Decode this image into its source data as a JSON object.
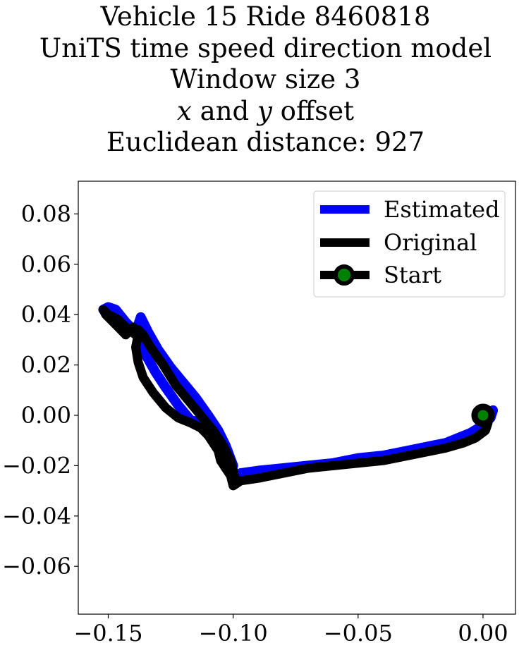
{
  "chart_data": {
    "type": "line",
    "title_lines": [
      "Vehicle 15 Ride 8460818",
      "UniTS time speed direction model",
      "Window size 3",
      "",
      "Euclidean distance: 927"
    ],
    "title_line4": {
      "x_var": "x",
      "middle": " and ",
      "y_var": "y",
      "rest": " offset"
    },
    "xlabel": "",
    "ylabel": "",
    "xlim": [
      -0.162,
      0.013
    ],
    "ylim": [
      -0.079,
      0.093
    ],
    "x_ticks": [
      -0.15,
      -0.1,
      -0.05,
      0.0
    ],
    "x_tick_labels": [
      "−0.15",
      "−0.10",
      "−0.05",
      "0.00"
    ],
    "y_ticks": [
      0.08,
      0.06,
      0.04,
      0.02,
      0.0,
      -0.02,
      -0.04,
      -0.06
    ],
    "y_tick_labels": [
      "0.08",
      "0.06",
      "0.04",
      "0.02",
      "0.00",
      "−0.02",
      "−0.04",
      "−0.06"
    ],
    "grid": false,
    "legend_position": "upper right",
    "series": [
      {
        "name": "Estimated",
        "color": "#0000ff",
        "x": [
          0.004,
          0.003,
          0.0,
          -0.005,
          -0.01,
          -0.015,
          -0.02,
          -0.03,
          -0.04,
          -0.05,
          -0.06,
          -0.07,
          -0.08,
          -0.09,
          -0.097,
          -0.099,
          -0.1,
          -0.102,
          -0.105,
          -0.108,
          -0.112,
          -0.117,
          -0.122,
          -0.127,
          -0.131,
          -0.135,
          -0.137,
          -0.138,
          -0.14,
          -0.142,
          -0.145,
          -0.148,
          -0.15,
          -0.152,
          -0.15,
          -0.147,
          -0.143,
          -0.14,
          -0.138,
          -0.137,
          -0.136,
          -0.134,
          -0.13,
          -0.125,
          -0.12,
          -0.115,
          -0.11,
          -0.106,
          -0.103,
          -0.1
        ],
        "y": [
          0.002,
          -0.001,
          -0.004,
          -0.007,
          -0.009,
          -0.011,
          -0.012,
          -0.014,
          -0.016,
          -0.017,
          -0.019,
          -0.02,
          -0.021,
          -0.022,
          -0.023,
          -0.024,
          -0.022,
          -0.017,
          -0.012,
          -0.008,
          -0.003,
          -0.002,
          0.004,
          0.011,
          0.017,
          0.024,
          0.03,
          0.035,
          0.034,
          0.036,
          0.039,
          0.042,
          0.043,
          0.042,
          0.043,
          0.042,
          0.037,
          0.033,
          0.036,
          0.039,
          0.037,
          0.033,
          0.026,
          0.019,
          0.013,
          0.007,
          0.0,
          -0.006,
          -0.012,
          -0.02
        ]
      },
      {
        "name": "Original",
        "color": "#000000",
        "x": [
          0.0,
          0.002,
          0.001,
          -0.003,
          -0.008,
          -0.015,
          -0.02,
          -0.03,
          -0.04,
          -0.05,
          -0.06,
          -0.07,
          -0.08,
          -0.09,
          -0.097,
          -0.1,
          -0.101,
          -0.103,
          -0.105,
          -0.106,
          -0.108,
          -0.11,
          -0.113,
          -0.117,
          -0.122,
          -0.127,
          -0.132,
          -0.136,
          -0.138,
          -0.139,
          -0.138,
          -0.14,
          -0.143,
          -0.146,
          -0.149,
          -0.151,
          -0.152,
          -0.15,
          -0.146,
          -0.142,
          -0.139,
          -0.138,
          -0.136,
          -0.133,
          -0.128,
          -0.123,
          -0.118,
          -0.113,
          -0.108,
          -0.104,
          -0.101,
          -0.099
        ],
        "y": [
          0.0,
          -0.003,
          -0.006,
          -0.009,
          -0.011,
          -0.013,
          -0.014,
          -0.016,
          -0.018,
          -0.019,
          -0.02,
          -0.021,
          -0.023,
          -0.025,
          -0.026,
          -0.028,
          -0.024,
          -0.021,
          -0.018,
          -0.014,
          -0.011,
          -0.008,
          -0.005,
          -0.003,
          -0.001,
          0.003,
          0.009,
          0.015,
          0.021,
          0.027,
          0.032,
          0.035,
          0.032,
          0.035,
          0.038,
          0.04,
          0.042,
          0.04,
          0.038,
          0.034,
          0.032,
          0.034,
          0.032,
          0.027,
          0.02,
          0.012,
          0.006,
          0.0,
          -0.006,
          -0.012,
          -0.018,
          -0.026
        ]
      }
    ],
    "start_marker": {
      "name": "Start",
      "x": 0.0,
      "y": 0.0,
      "fill": "#008000",
      "edge": "#000000"
    }
  }
}
